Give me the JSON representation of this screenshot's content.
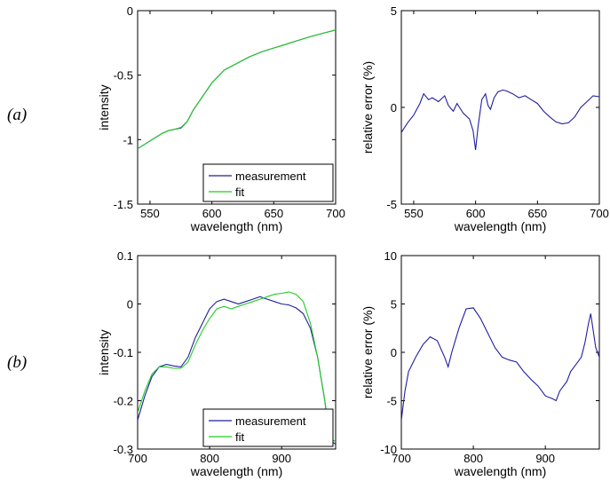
{
  "rows": [
    {
      "label": "(a)"
    },
    {
      "label": "(b)"
    }
  ],
  "colors": {
    "measurement": "#1f1fa0",
    "fit": "#22cc22"
  },
  "chart_data": [
    {
      "id": "a-intensity",
      "type": "line",
      "xlabel": "wavelength (nm)",
      "ylabel": "intensity",
      "xlim": [
        540,
        700
      ],
      "ylim": [
        -1.5,
        0
      ],
      "xticks": [
        550,
        600,
        650,
        700
      ],
      "yticks": [
        -1.5,
        -1,
        -0.5,
        0
      ],
      "ytick_labels": [
        "-1.5",
        "-1",
        "-0.5",
        "0"
      ],
      "legend": {
        "position": "bottom-right",
        "entries": [
          "measurement",
          "fit"
        ]
      },
      "series": [
        {
          "name": "measurement",
          "color": "#1f1fa0",
          "x": [
            540,
            550,
            560,
            565,
            570,
            575,
            580,
            585,
            590,
            595,
            600,
            610,
            620,
            630,
            640,
            650,
            660,
            670,
            680,
            690,
            700
          ],
          "y": [
            -1.07,
            -1.01,
            -0.95,
            -0.93,
            -0.92,
            -0.91,
            -0.86,
            -0.77,
            -0.7,
            -0.63,
            -0.56,
            -0.46,
            -0.41,
            -0.36,
            -0.32,
            -0.29,
            -0.26,
            -0.23,
            -0.2,
            -0.175,
            -0.15
          ]
        },
        {
          "name": "fit",
          "color": "#22cc22",
          "x": [
            540,
            550,
            560,
            565,
            570,
            575,
            580,
            585,
            590,
            595,
            600,
            610,
            620,
            630,
            640,
            650,
            660,
            670,
            680,
            690,
            700
          ],
          "y": [
            -1.07,
            -1.01,
            -0.95,
            -0.93,
            -0.92,
            -0.905,
            -0.86,
            -0.77,
            -0.7,
            -0.63,
            -0.56,
            -0.46,
            -0.41,
            -0.36,
            -0.32,
            -0.29,
            -0.26,
            -0.23,
            -0.2,
            -0.175,
            -0.15
          ]
        }
      ]
    },
    {
      "id": "a-error",
      "type": "line",
      "xlabel": "wavelength (nm)",
      "ylabel": "relative error (%)",
      "xlim": [
        540,
        700
      ],
      "ylim": [
        -5,
        5
      ],
      "xticks": [
        550,
        600,
        650,
        700
      ],
      "yticks": [
        -5,
        0,
        5
      ],
      "ytick_labels": [
        "-5",
        "0",
        "5"
      ],
      "series": [
        {
          "name": "",
          "color": "#1f1fa0",
          "x": [
            540,
            545,
            550,
            555,
            558,
            562,
            565,
            570,
            575,
            578,
            582,
            585,
            590,
            595,
            598,
            600,
            602,
            605,
            608,
            610,
            612,
            615,
            618,
            622,
            625,
            630,
            635,
            640,
            645,
            650,
            655,
            660,
            665,
            670,
            675,
            680,
            685,
            690,
            695,
            700
          ],
          "y": [
            -1.3,
            -0.8,
            -0.4,
            0.2,
            0.7,
            0.4,
            0.5,
            0.3,
            0.6,
            0.1,
            -0.2,
            0.2,
            -0.3,
            -0.6,
            -1.2,
            -2.2,
            -1.0,
            0.4,
            0.7,
            0.1,
            -0.1,
            0.5,
            0.8,
            0.9,
            0.85,
            0.7,
            0.5,
            0.6,
            0.4,
            0.2,
            -0.2,
            -0.5,
            -0.75,
            -0.85,
            -0.8,
            -0.5,
            0.0,
            0.3,
            0.6,
            0.55
          ]
        }
      ]
    },
    {
      "id": "b-intensity",
      "type": "line",
      "xlabel": "wavelength (nm)",
      "ylabel": "intensity",
      "xlim": [
        700,
        975
      ],
      "ylim": [
        -0.3,
        0.1
      ],
      "xticks": [
        700,
        800,
        900
      ],
      "yticks": [
        -0.3,
        -0.2,
        -0.1,
        0,
        0.1
      ],
      "ytick_labels": [
        "-0.3",
        "-0.2",
        "-0.1",
        "0",
        "0.1"
      ],
      "legend": {
        "position": "bottom-right",
        "entries": [
          "measurement",
          "fit"
        ]
      },
      "series": [
        {
          "name": "measurement",
          "color": "#1f1fa0",
          "x": [
            700,
            710,
            720,
            730,
            740,
            750,
            760,
            770,
            780,
            790,
            800,
            810,
            820,
            830,
            840,
            850,
            860,
            870,
            880,
            890,
            900,
            910,
            920,
            930,
            940,
            950,
            960,
            965,
            970,
            975
          ],
          "y": [
            -0.24,
            -0.19,
            -0.15,
            -0.13,
            -0.125,
            -0.128,
            -0.13,
            -0.11,
            -0.07,
            -0.04,
            -0.01,
            0.005,
            0.01,
            0.005,
            0.0,
            0.005,
            0.01,
            0.015,
            0.01,
            0.005,
            0.0,
            -0.002,
            -0.008,
            -0.02,
            -0.05,
            -0.11,
            -0.2,
            -0.26,
            -0.285,
            -0.29
          ]
        },
        {
          "name": "fit",
          "color": "#22cc22",
          "x": [
            700,
            710,
            720,
            730,
            740,
            750,
            760,
            770,
            780,
            790,
            800,
            810,
            820,
            830,
            840,
            850,
            860,
            870,
            880,
            890,
            900,
            910,
            920,
            930,
            940,
            950,
            960,
            965,
            970,
            975
          ],
          "y": [
            -0.225,
            -0.18,
            -0.145,
            -0.13,
            -0.13,
            -0.133,
            -0.133,
            -0.12,
            -0.085,
            -0.055,
            -0.03,
            -0.01,
            -0.005,
            -0.01,
            -0.005,
            0.0,
            0.005,
            0.01,
            0.015,
            0.02,
            0.022,
            0.025,
            0.02,
            0.005,
            -0.04,
            -0.11,
            -0.2,
            -0.25,
            -0.28,
            -0.285
          ]
        }
      ]
    },
    {
      "id": "b-error",
      "type": "line",
      "xlabel": "wavelength (nm)",
      "ylabel": "relative error (%)",
      "xlim": [
        700,
        975
      ],
      "ylim": [
        -10,
        10
      ],
      "xticks": [
        700,
        800,
        900
      ],
      "yticks": [
        -10,
        -5,
        0,
        5,
        10
      ],
      "ytick_labels": [
        "-10",
        "-5",
        "0",
        "5",
        "10"
      ],
      "series": [
        {
          "name": "",
          "color": "#1f1fa0",
          "x": [
            700,
            705,
            710,
            720,
            730,
            740,
            750,
            760,
            765,
            770,
            780,
            790,
            800,
            810,
            820,
            830,
            840,
            850,
            860,
            870,
            880,
            890,
            900,
            910,
            915,
            920,
            930,
            935,
            940,
            945,
            950,
            955,
            960,
            963,
            966,
            970,
            975
          ],
          "y": [
            -7,
            -4,
            -2,
            -0.5,
            0.8,
            1.6,
            1.2,
            -0.5,
            -1.5,
            0.0,
            2.5,
            4.5,
            4.6,
            3.5,
            2.0,
            0.5,
            -0.5,
            -0.8,
            -1.0,
            -2.0,
            -2.8,
            -3.5,
            -4.5,
            -4.8,
            -5.0,
            -4.0,
            -3.0,
            -2.0,
            -1.5,
            -1.0,
            -0.5,
            1.0,
            3.0,
            4.0,
            2.5,
            0.5,
            -0.5
          ]
        }
      ]
    }
  ]
}
